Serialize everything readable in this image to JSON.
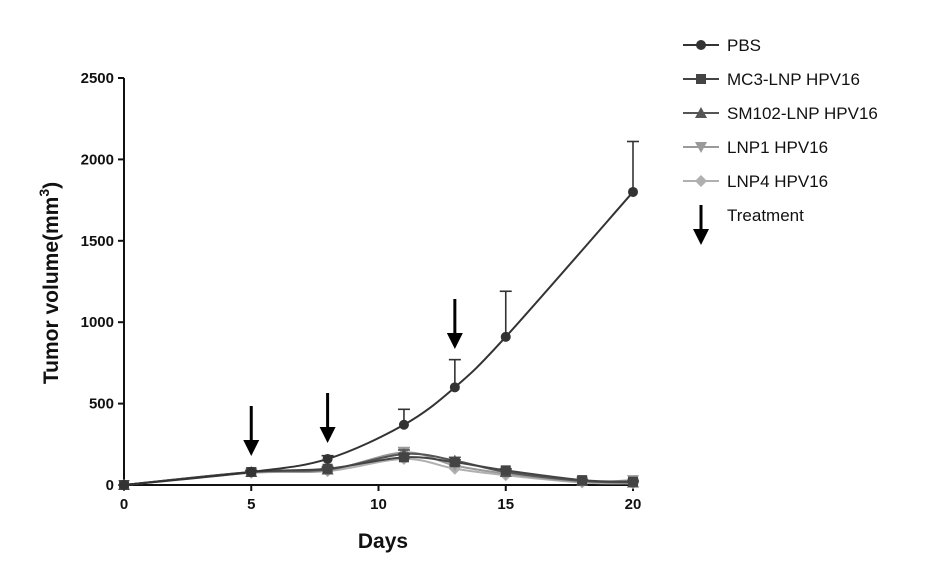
{
  "chart_data": {
    "type": "line",
    "title": "",
    "xlabel": "Days",
    "ylabel": "Tumor volume(mm",
    "ylabel_sup": "3",
    "ylabel_close": ")",
    "xlim": [
      0,
      20
    ],
    "ylim": [
      0,
      2500
    ],
    "xticks": [
      0,
      5,
      10,
      15,
      20
    ],
    "yticks": [
      0,
      500,
      1000,
      1500,
      2000,
      2500
    ],
    "grid": false,
    "legend_position": "top-right",
    "series": [
      {
        "name": "PBS",
        "marker": "circle",
        "color": "#333333",
        "x": [
          0,
          5,
          8,
          11,
          13,
          15,
          20
        ],
        "y": [
          0,
          80,
          160,
          370,
          600,
          910,
          1800
        ],
        "err": [
          0,
          10,
          20,
          95,
          170,
          280,
          310
        ]
      },
      {
        "name": "MC3-LNP HPV16",
        "marker": "square",
        "color": "#444444",
        "x": [
          0,
          5,
          8,
          11,
          13,
          15,
          18,
          20
        ],
        "y": [
          0,
          80,
          100,
          170,
          140,
          90,
          30,
          20
        ],
        "err": [
          0,
          5,
          10,
          20,
          15,
          10,
          5,
          5
        ]
      },
      {
        "name": "SM102-LNP HPV16",
        "marker": "triangle-up",
        "color": "#555555",
        "x": [
          0,
          5,
          8,
          11,
          13,
          15,
          18,
          20
        ],
        "y": [
          0,
          80,
          95,
          190,
          150,
          80,
          25,
          15
        ],
        "err": [
          0,
          5,
          10,
          25,
          20,
          10,
          5,
          5
        ]
      },
      {
        "name": "LNP1 HPV16",
        "marker": "triangle-down",
        "color": "#9a9a9a",
        "x": [
          0,
          5,
          8,
          11,
          13,
          15,
          18,
          20
        ],
        "y": [
          0,
          75,
          90,
          200,
          120,
          70,
          20,
          30
        ],
        "err": [
          0,
          5,
          10,
          30,
          15,
          10,
          5,
          5
        ]
      },
      {
        "name": "LNP4 HPV16",
        "marker": "diamond",
        "color": "#b0b0b0",
        "x": [
          0,
          5,
          8,
          11,
          13,
          15,
          18,
          20
        ],
        "y": [
          0,
          75,
          85,
          160,
          100,
          60,
          15,
          10
        ],
        "err": [
          0,
          5,
          10,
          20,
          15,
          10,
          5,
          5
        ]
      }
    ],
    "annotations": {
      "treatment_label": "Treatment",
      "treatment_days": [
        5,
        8,
        13
      ]
    }
  }
}
